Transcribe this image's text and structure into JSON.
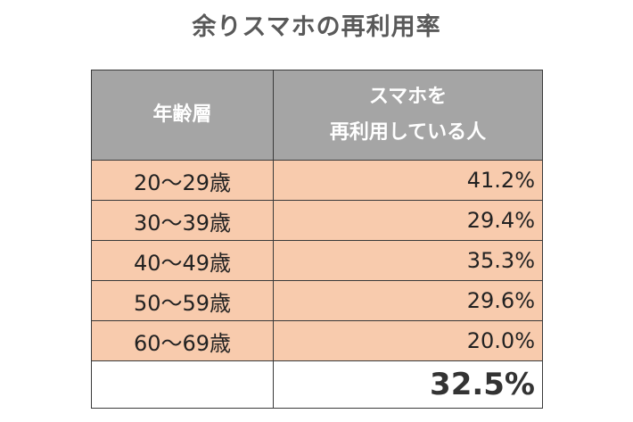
{
  "title": "余りスマホの再利用率",
  "table": {
    "header": {
      "col1": "年齢層",
      "col2_line1": "スマホを",
      "col2_line2": "再利用している人"
    },
    "rows": [
      {
        "age": "20～29歳",
        "value": "41.2%"
      },
      {
        "age": "30～39歳",
        "value": "29.4%"
      },
      {
        "age": "40～49歳",
        "value": "35.3%"
      },
      {
        "age": "50～59歳",
        "value": "29.6%"
      },
      {
        "age": "60～69歳",
        "value": "20.0%"
      }
    ],
    "total": {
      "label": "",
      "value": "32.5%"
    }
  },
  "colors": {
    "header_bg": "#a5a5a5",
    "row_bg": "#f8cbad",
    "title_color": "#595959"
  }
}
